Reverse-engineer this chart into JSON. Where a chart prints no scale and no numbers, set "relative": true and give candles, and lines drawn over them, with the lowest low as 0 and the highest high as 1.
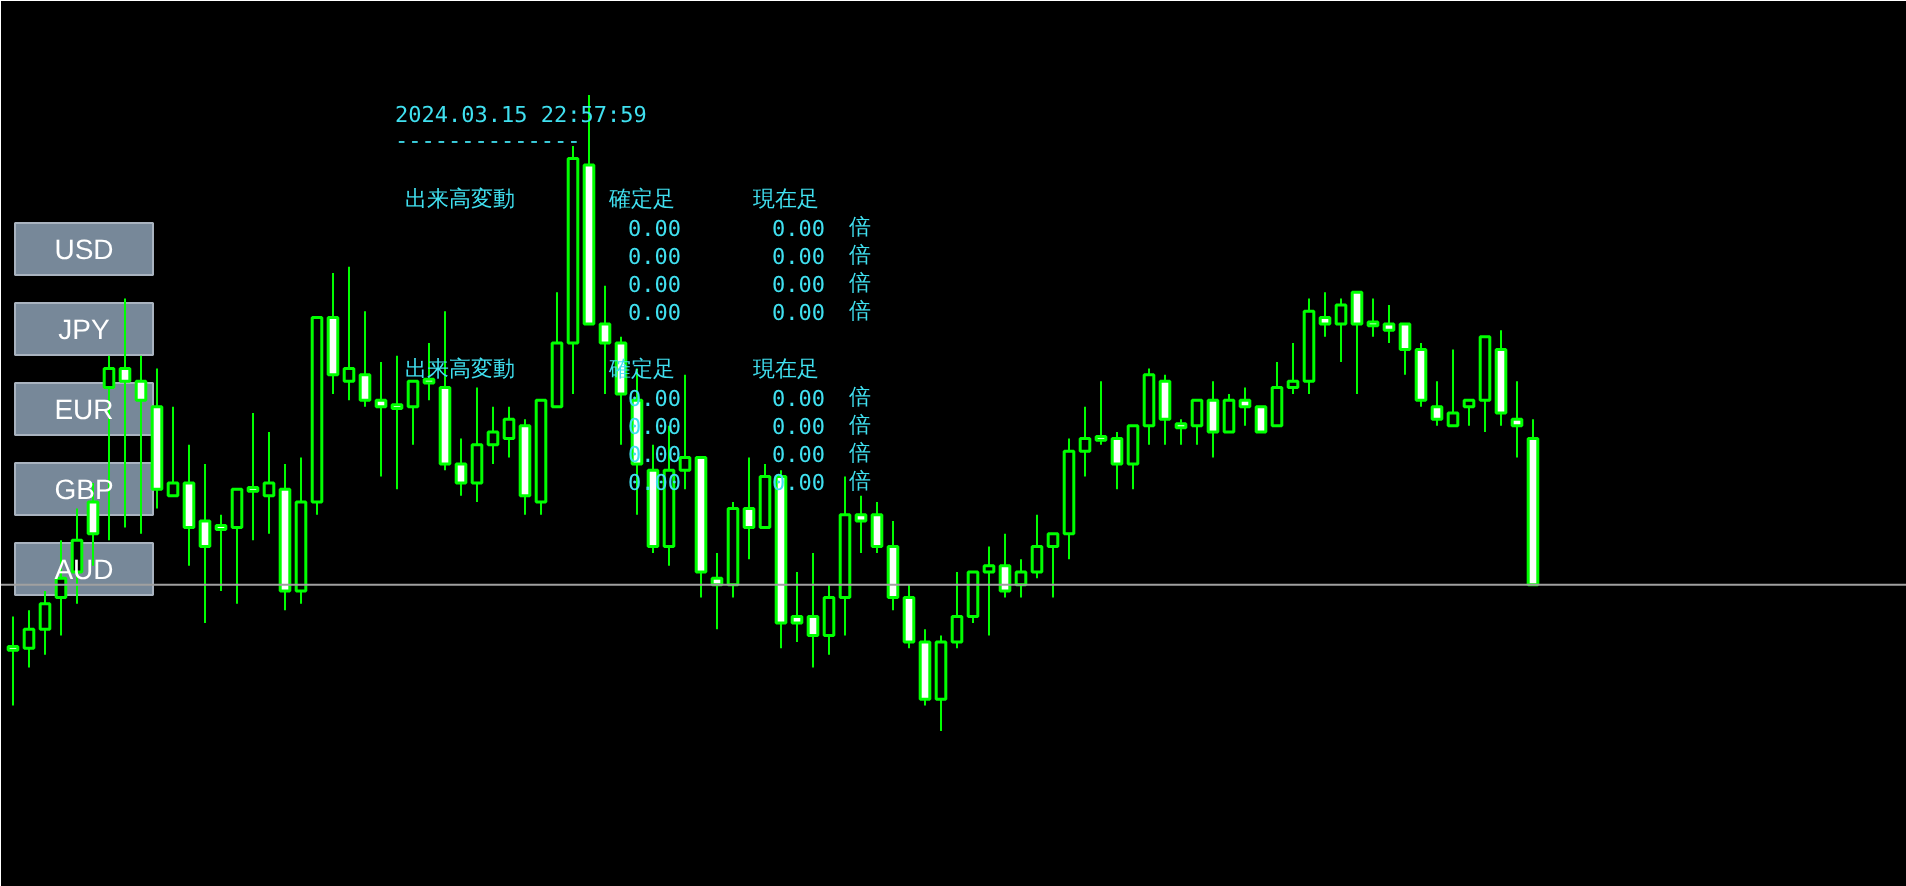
{
  "chart_data": {
    "type": "candlestick",
    "relative": true,
    "grid": false,
    "color": "#00ff00",
    "categories": [
      null,
      null,
      null,
      null,
      null,
      null,
      null,
      null,
      null,
      null,
      null,
      null,
      null,
      null,
      null,
      null,
      null,
      null,
      null,
      null,
      null,
      null,
      null,
      null,
      null,
      null,
      null,
      null,
      null,
      null,
      null,
      null,
      null,
      null,
      null,
      null,
      null,
      null,
      null,
      null,
      null,
      null,
      null,
      null,
      null,
      null,
      null,
      null,
      null,
      null,
      null,
      null,
      null,
      null,
      null,
      null,
      null,
      null,
      null,
      null,
      null,
      null,
      null,
      null,
      null,
      null,
      null,
      null,
      null,
      null,
      null,
      null,
      null,
      null,
      null,
      null,
      null,
      null,
      null,
      null,
      null,
      null,
      null,
      null,
      null,
      null,
      null,
      null,
      null,
      null,
      null,
      null,
      null,
      null,
      null,
      null
    ],
    "ohlc": [
      [
        0.13,
        0.18,
        0.04,
        0.13
      ],
      [
        0.13,
        0.19,
        0.1,
        0.16
      ],
      [
        0.16,
        0.22,
        0.12,
        0.2
      ],
      [
        0.21,
        0.3,
        0.15,
        0.24
      ],
      [
        0.25,
        0.35,
        0.2,
        0.3
      ],
      [
        0.36,
        0.39,
        0.26,
        0.31
      ],
      [
        0.54,
        0.59,
        0.3,
        0.57
      ],
      [
        0.57,
        0.68,
        0.32,
        0.55
      ],
      [
        0.55,
        0.59,
        0.31,
        0.52
      ],
      [
        0.51,
        0.57,
        0.35,
        0.38
      ],
      [
        0.37,
        0.51,
        0.37,
        0.39
      ],
      [
        0.39,
        0.45,
        0.26,
        0.32
      ],
      [
        0.33,
        0.42,
        0.17,
        0.29
      ],
      [
        0.32,
        0.34,
        0.22,
        0.32
      ],
      [
        0.32,
        0.38,
        0.2,
        0.38
      ],
      [
        0.38,
        0.5,
        0.3,
        0.38
      ],
      [
        0.37,
        0.47,
        0.31,
        0.39
      ],
      [
        0.38,
        0.42,
        0.19,
        0.22
      ],
      [
        0.22,
        0.43,
        0.2,
        0.36
      ],
      [
        0.36,
        0.65,
        0.34,
        0.65
      ],
      [
        0.65,
        0.72,
        0.53,
        0.56
      ],
      [
        0.55,
        0.73,
        0.52,
        0.57
      ],
      [
        0.56,
        0.66,
        0.51,
        0.52
      ],
      [
        0.52,
        0.58,
        0.4,
        0.51
      ],
      [
        0.51,
        0.59,
        0.38,
        0.51
      ],
      [
        0.51,
        0.55,
        0.45,
        0.55
      ],
      [
        0.55,
        0.61,
        0.52,
        0.55
      ],
      [
        0.54,
        0.66,
        0.41,
        0.42
      ],
      [
        0.42,
        0.46,
        0.37,
        0.39
      ],
      [
        0.39,
        0.54,
        0.36,
        0.45
      ],
      [
        0.45,
        0.51,
        0.42,
        0.47
      ],
      [
        0.46,
        0.51,
        0.43,
        0.49
      ],
      [
        0.48,
        0.49,
        0.34,
        0.37
      ],
      [
        0.36,
        0.52,
        0.34,
        0.52
      ],
      [
        0.51,
        0.69,
        0.51,
        0.61
      ],
      [
        0.61,
        0.92,
        0.53,
        0.9
      ],
      [
        0.89,
        1.0,
        0.64,
        0.64
      ],
      [
        0.64,
        0.7,
        0.53,
        0.61
      ],
      [
        0.61,
        0.62,
        0.45,
        0.53
      ],
      [
        0.52,
        0.57,
        0.34,
        0.42
      ],
      [
        0.41,
        0.45,
        0.28,
        0.29
      ],
      [
        0.29,
        0.48,
        0.26,
        0.41
      ],
      [
        0.41,
        0.56,
        0.38,
        0.43
      ],
      [
        0.43,
        0.43,
        0.21,
        0.25
      ],
      [
        0.24,
        0.28,
        0.16,
        0.23
      ],
      [
        0.23,
        0.36,
        0.21,
        0.35
      ],
      [
        0.35,
        0.43,
        0.27,
        0.32
      ],
      [
        0.32,
        0.42,
        0.32,
        0.4
      ],
      [
        0.4,
        0.41,
        0.13,
        0.17
      ],
      [
        0.18,
        0.25,
        0.14,
        0.17
      ],
      [
        0.18,
        0.28,
        0.1,
        0.15
      ],
      [
        0.15,
        0.23,
        0.12,
        0.21
      ],
      [
        0.21,
        0.4,
        0.15,
        0.34
      ],
      [
        0.34,
        0.37,
        0.28,
        0.33
      ],
      [
        0.34,
        0.36,
        0.28,
        0.29
      ],
      [
        0.29,
        0.33,
        0.19,
        0.21
      ],
      [
        0.21,
        0.23,
        0.13,
        0.14
      ],
      [
        0.14,
        0.16,
        0.04,
        0.05
      ],
      [
        0.05,
        0.15,
        0.0,
        0.14
      ],
      [
        0.14,
        0.25,
        0.13,
        0.18
      ],
      [
        0.18,
        0.25,
        0.17,
        0.25
      ],
      [
        0.25,
        0.29,
        0.15,
        0.26
      ],
      [
        0.26,
        0.31,
        0.21,
        0.22
      ],
      [
        0.23,
        0.27,
        0.21,
        0.25
      ],
      [
        0.25,
        0.34,
        0.24,
        0.29
      ],
      [
        0.29,
        0.31,
        0.21,
        0.31
      ],
      [
        0.31,
        0.46,
        0.27,
        0.44
      ],
      [
        0.44,
        0.51,
        0.4,
        0.46
      ],
      [
        0.46,
        0.55,
        0.45,
        0.46
      ],
      [
        0.46,
        0.47,
        0.38,
        0.42
      ],
      [
        0.42,
        0.48,
        0.38,
        0.48
      ],
      [
        0.48,
        0.57,
        0.45,
        0.56
      ],
      [
        0.55,
        0.56,
        0.45,
        0.49
      ],
      [
        0.48,
        0.49,
        0.45,
        0.48
      ],
      [
        0.48,
        0.52,
        0.45,
        0.52
      ],
      [
        0.52,
        0.55,
        0.43,
        0.47
      ],
      [
        0.47,
        0.53,
        0.47,
        0.52
      ],
      [
        0.52,
        0.54,
        0.48,
        0.51
      ],
      [
        0.51,
        0.51,
        0.47,
        0.47
      ],
      [
        0.48,
        0.58,
        0.48,
        0.54
      ],
      [
        0.54,
        0.61,
        0.53,
        0.55
      ],
      [
        0.55,
        0.68,
        0.53,
        0.66
      ],
      [
        0.65,
        0.69,
        0.62,
        0.64
      ],
      [
        0.64,
        0.68,
        0.58,
        0.67
      ],
      [
        0.69,
        0.69,
        0.53,
        0.64
      ],
      [
        0.64,
        0.68,
        0.62,
        0.64
      ],
      [
        0.64,
        0.67,
        0.61,
        0.63
      ],
      [
        0.64,
        0.64,
        0.56,
        0.6
      ],
      [
        0.6,
        0.61,
        0.51,
        0.52
      ],
      [
        0.51,
        0.55,
        0.48,
        0.49
      ],
      [
        0.48,
        0.6,
        0.48,
        0.5
      ],
      [
        0.51,
        0.52,
        0.48,
        0.52
      ],
      [
        0.52,
        0.62,
        0.47,
        0.62
      ],
      [
        0.6,
        0.63,
        0.48,
        0.5
      ],
      [
        0.49,
        0.55,
        0.43,
        0.48
      ],
      [
        0.46,
        0.49,
        0.23,
        0.23
      ]
    ],
    "ref_lines": [
      {
        "axis": "y",
        "value": 0.23,
        "color": "#a0a0a0"
      }
    ],
    "annotations": [
      "2024.03.15 22:57:59",
      "--------------",
      "出来高変動",
      "確定足",
      "現在足",
      "0.00",
      "0.00",
      "倍",
      "0.00",
      "0.00",
      "倍",
      "0.00",
      "0.00",
      "倍",
      "0.00",
      "0.00",
      "倍",
      "出来高変動",
      "確定足",
      "現在足",
      "0.00",
      "0.00",
      "倍",
      "0.00",
      "0.00",
      "倍",
      "0.00",
      "0.00",
      "倍",
      "0.00",
      "0.00",
      "倍",
      "USD",
      "JPY",
      "EUR",
      "GBP",
      "AUD"
    ]
  }
}
